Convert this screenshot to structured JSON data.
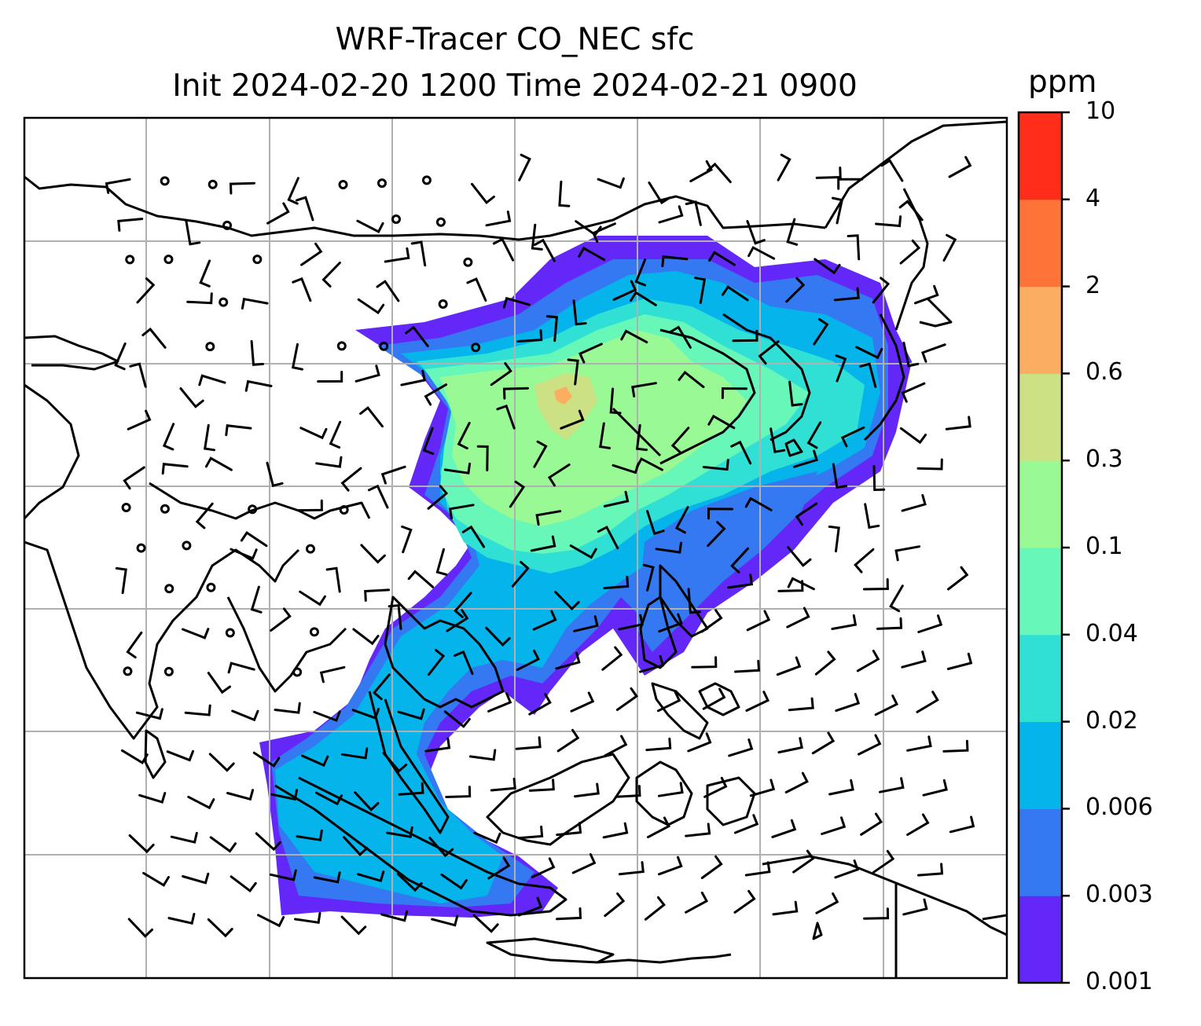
{
  "title_line1": "WRF-Tracer CO_NEC sfc",
  "title_line2": "Init 2024-02-20 1200 Time 2024-02-21 0900",
  "colorbar": {
    "unit": "ppm",
    "levels": [
      "0.001",
      "0.003",
      "0.006",
      "0.02",
      "0.04",
      "0.1",
      "0.3",
      "0.6",
      "2",
      "4",
      "10"
    ],
    "colors": [
      "#6328f8",
      "#3478f2",
      "#05b4ea",
      "#30e0d4",
      "#66f7b9",
      "#99f994",
      "#cbe183",
      "#fbad62",
      "#fe7338",
      "#ff2d1a"
    ]
  },
  "grid": {
    "gridlines": true,
    "gridline_color": "#b0b0b0"
  },
  "map": {
    "coastline_color": "#000000",
    "wind_barb_color": "#000000",
    "plume_description_levels": [
      "0.001",
      "0.003",
      "0.006",
      "0.02",
      "0.04",
      "0.1",
      "0.3",
      "0.6"
    ]
  }
}
